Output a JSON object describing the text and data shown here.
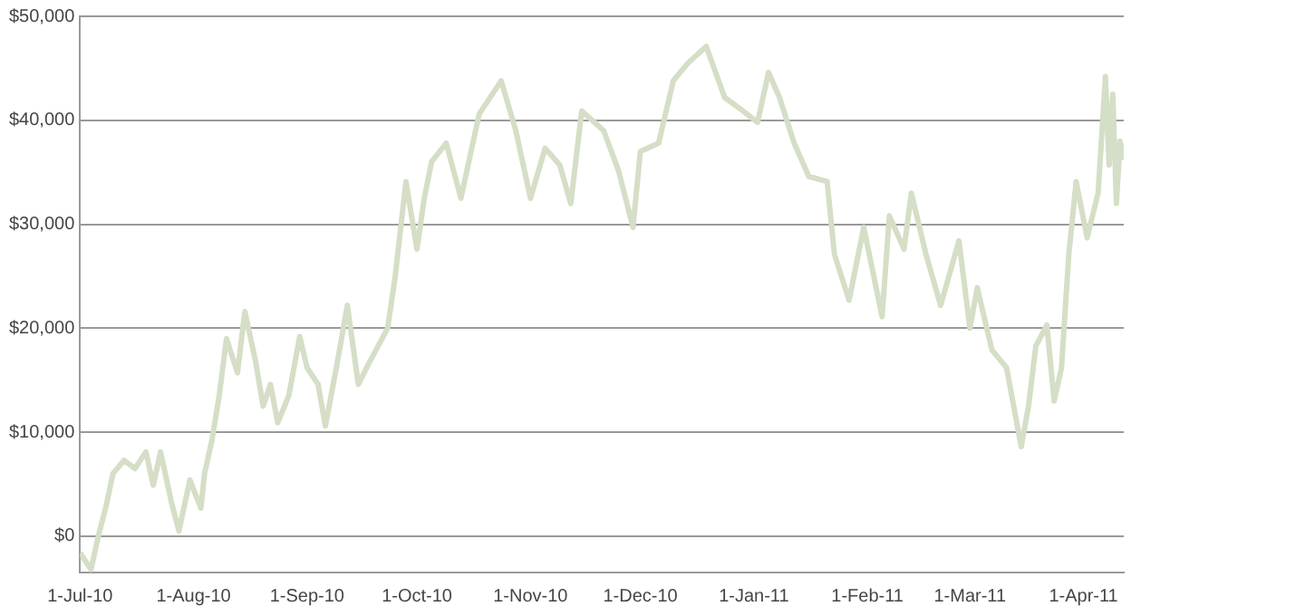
{
  "chart_data": {
    "type": "line",
    "color": "#d5dec6",
    "marker": "none",
    "line_style": "solid",
    "grid": "y",
    "legend": false,
    "xlim": [
      "2010-07-01",
      "2011-04-12"
    ],
    "xticks": [
      {
        "value": "2010-07-01",
        "label": "1-Jul-10"
      },
      {
        "value": "2010-08-01",
        "label": "1-Aug-10"
      },
      {
        "value": "2010-09-01",
        "label": "1-Sep-10"
      },
      {
        "value": "2010-10-01",
        "label": "1-Oct-10"
      },
      {
        "value": "2010-11-01",
        "label": "1-Nov-10"
      },
      {
        "value": "2010-12-01",
        "label": "1-Dec-10"
      },
      {
        "value": "2011-01-01",
        "label": "1-Jan-11"
      },
      {
        "value": "2011-02-01",
        "label": "1-Feb-11"
      },
      {
        "value": "2011-03-01",
        "label": "1-Mar-11"
      },
      {
        "value": "2011-04-01",
        "label": "1-Apr-11"
      }
    ],
    "ylim": [
      -3500,
      50000
    ],
    "yticks": [
      {
        "value": 0,
        "label": "$0"
      },
      {
        "value": 10000,
        "label": "$10,000"
      },
      {
        "value": 20000,
        "label": "$20,000"
      },
      {
        "value": 30000,
        "label": "$30,000"
      },
      {
        "value": 40000,
        "label": "$40,000"
      },
      {
        "value": 50000,
        "label": "$50,000"
      }
    ],
    "x": [
      "2010-07-01",
      "2010-07-04",
      "2010-07-06",
      "2010-07-08",
      "2010-07-10",
      "2010-07-13",
      "2010-07-16",
      "2010-07-19",
      "2010-07-21",
      "2010-07-23",
      "2010-07-26",
      "2010-07-28",
      "2010-07-31",
      "2010-08-03",
      "2010-08-04",
      "2010-08-06",
      "2010-08-08",
      "2010-08-10",
      "2010-08-13",
      "2010-08-15",
      "2010-08-18",
      "2010-08-20",
      "2010-08-22",
      "2010-08-24",
      "2010-08-27",
      "2010-08-30",
      "2010-09-01",
      "2010-09-04",
      "2010-09-06",
      "2010-09-09",
      "2010-09-12",
      "2010-09-15",
      "2010-09-18",
      "2010-09-23",
      "2010-09-25",
      "2010-09-28",
      "2010-10-01",
      "2010-10-03",
      "2010-10-05",
      "2010-10-09",
      "2010-10-13",
      "2010-10-18",
      "2010-10-24",
      "2010-10-28",
      "2010-11-01",
      "2010-11-05",
      "2010-11-09",
      "2010-11-12",
      "2010-11-15",
      "2010-11-21",
      "2010-11-25",
      "2010-11-29",
      "2010-12-01",
      "2010-12-06",
      "2010-12-10",
      "2010-12-14",
      "2010-12-19",
      "2010-12-24",
      "2010-12-29",
      "2011-01-02",
      "2011-01-05",
      "2011-01-08",
      "2011-01-12",
      "2011-01-16",
      "2011-01-21",
      "2011-01-23",
      "2011-01-27",
      "2011-01-31",
      "2011-02-05",
      "2011-02-07",
      "2011-02-11",
      "2011-02-13",
      "2011-02-17",
      "2011-02-21",
      "2011-02-26",
      "2011-03-01",
      "2011-03-03",
      "2011-03-07",
      "2011-03-11",
      "2011-03-15",
      "2011-03-17",
      "2011-03-19",
      "2011-03-22",
      "2011-03-24",
      "2011-03-26",
      "2011-03-28",
      "2011-03-30",
      "2011-04-02",
      "2011-04-05",
      "2011-04-07",
      "2011-04-08",
      "2011-04-09",
      "2011-04-10",
      "2011-04-11",
      "2011-04-12"
    ],
    "values": [
      -1600,
      -3200,
      0,
      2700,
      6000,
      7300,
      6500,
      8100,
      4900,
      8100,
      3200,
      500,
      5400,
      2700,
      6000,
      9200,
      13500,
      19000,
      15700,
      21600,
      16700,
      12500,
      14600,
      10900,
      13500,
      19200,
      16200,
      14600,
      10600,
      16200,
      22200,
      14600,
      16700,
      20000,
      24800,
      34100,
      27600,
      32500,
      36000,
      37800,
      32500,
      40600,
      43800,
      39000,
      32500,
      37300,
      35700,
      32000,
      40900,
      39000,
      35200,
      29700,
      37000,
      37800,
      43800,
      45500,
      47100,
      42200,
      40900,
      39800,
      44600,
      42200,
      37800,
      34600,
      34100,
      27100,
      22700,
      29700,
      21100,
      30800,
      27600,
      33000,
      27100,
      22200,
      28400,
      20000,
      23900,
      17900,
      16200,
      8600,
      12500,
      18300,
      20300,
      13000,
      16200,
      27100,
      34100,
      28700,
      33000,
      44200,
      35700,
      42500,
      32000,
      38000,
      36200
    ]
  }
}
